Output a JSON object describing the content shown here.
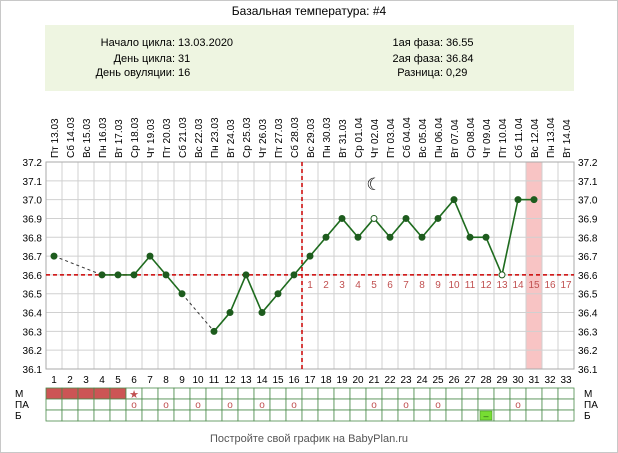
{
  "title": "Базальная температура: #4",
  "info": {
    "cycle_start_label": "Начало цикла:",
    "cycle_start_value": "13.03.2020",
    "cycle_day_label": "День цикла:",
    "cycle_day_value": "31",
    "ovulation_day_label": "День овуляции:",
    "ovulation_day_value": "16",
    "phase1_label": "1ая фаза:",
    "phase1_value": "36.55",
    "phase2_label": "2ая фаза:",
    "phase2_value": "36.84",
    "diff_label": "Разница:",
    "diff_value": "0,29"
  },
  "footer": "Постройте свой график на BabyPlan.ru",
  "legend_rows": [
    "М",
    "ПА",
    "Б"
  ],
  "colors": {
    "line": "#1e6b1e",
    "point": "#1e5c1e",
    "coverline": "#cc0000",
    "menses": "#cc5555",
    "highlight": "#f8c4c4",
    "grid": "#d0d0d0",
    "symbol_b": "#77dd33"
  },
  "chart_data": {
    "type": "line",
    "dates": [
      "Пт 13.03",
      "Сб 14.03",
      "Вс 15.03",
      "Пн 16.03",
      "Вт 17.03",
      "Ср 18.03",
      "Чт 19.03",
      "Пт 20.03",
      "Сб 21.03",
      "Вс 22.03",
      "Пн 23.03",
      "Вт 24.03",
      "Ср 25.03",
      "Чт 26.03",
      "Пт 27.03",
      "Сб 28.03",
      "Вс 29.03",
      "Пн 30.03",
      "Вт 31.03",
      "Ср 01.04",
      "Чт 02.04",
      "Пт 03.04",
      "Сб 04.04",
      "Вс 05.04",
      "Пн 06.04",
      "Вт 07.04",
      "Ср 08.04",
      "Чт 09.04",
      "Пт 10.04",
      "Сб 11.04",
      "Вс 12.04",
      "Пн 13.04",
      "Вт 14.04"
    ],
    "days": [
      1,
      2,
      3,
      4,
      5,
      6,
      7,
      8,
      9,
      10,
      11,
      12,
      13,
      14,
      15,
      16,
      17,
      18,
      19,
      20,
      21,
      22,
      23,
      24,
      25,
      26,
      27,
      28,
      29,
      30,
      31,
      32,
      33
    ],
    "temperatures": [
      36.7,
      null,
      null,
      36.6,
      36.6,
      36.6,
      36.7,
      36.6,
      36.5,
      null,
      36.3,
      36.4,
      36.6,
      36.4,
      36.5,
      36.6,
      36.7,
      36.8,
      36.9,
      36.8,
      36.9,
      36.8,
      36.9,
      36.8,
      36.9,
      37.0,
      36.8,
      36.8,
      36.6,
      37.0,
      37.0,
      null,
      null
    ],
    "dashed_segments": [
      [
        1,
        4
      ],
      [
        9,
        11
      ]
    ],
    "hollow_points": [
      21,
      29
    ],
    "ylim": [
      36.1,
      37.2
    ],
    "y_ticks": [
      "36.1",
      "36.2",
      "36.3",
      "36.4",
      "36.5",
      "36.6",
      "36.7",
      "36.8",
      "36.9",
      "37.0",
      "37.1",
      "37.2"
    ],
    "coverline": 36.6,
    "ovulation_day": 16,
    "highlight_day": 31,
    "luteal_labels": [
      "1",
      "2",
      "3",
      "4",
      "5",
      "6",
      "7",
      "8",
      "9",
      "10",
      "11",
      "12",
      "13",
      "14",
      "15",
      "16",
      "17"
    ],
    "moon_day": 21,
    "moon_symbol": "☾",
    "menses_days": [
      1,
      2,
      3,
      4,
      5
    ],
    "star_day": 6,
    "star_symbol": "★",
    "pa_days": [
      6,
      8,
      10,
      12,
      14,
      16,
      21,
      23,
      25,
      30
    ],
    "pa_symbol": "o",
    "b_day": 28,
    "b_symbol": "–"
  }
}
